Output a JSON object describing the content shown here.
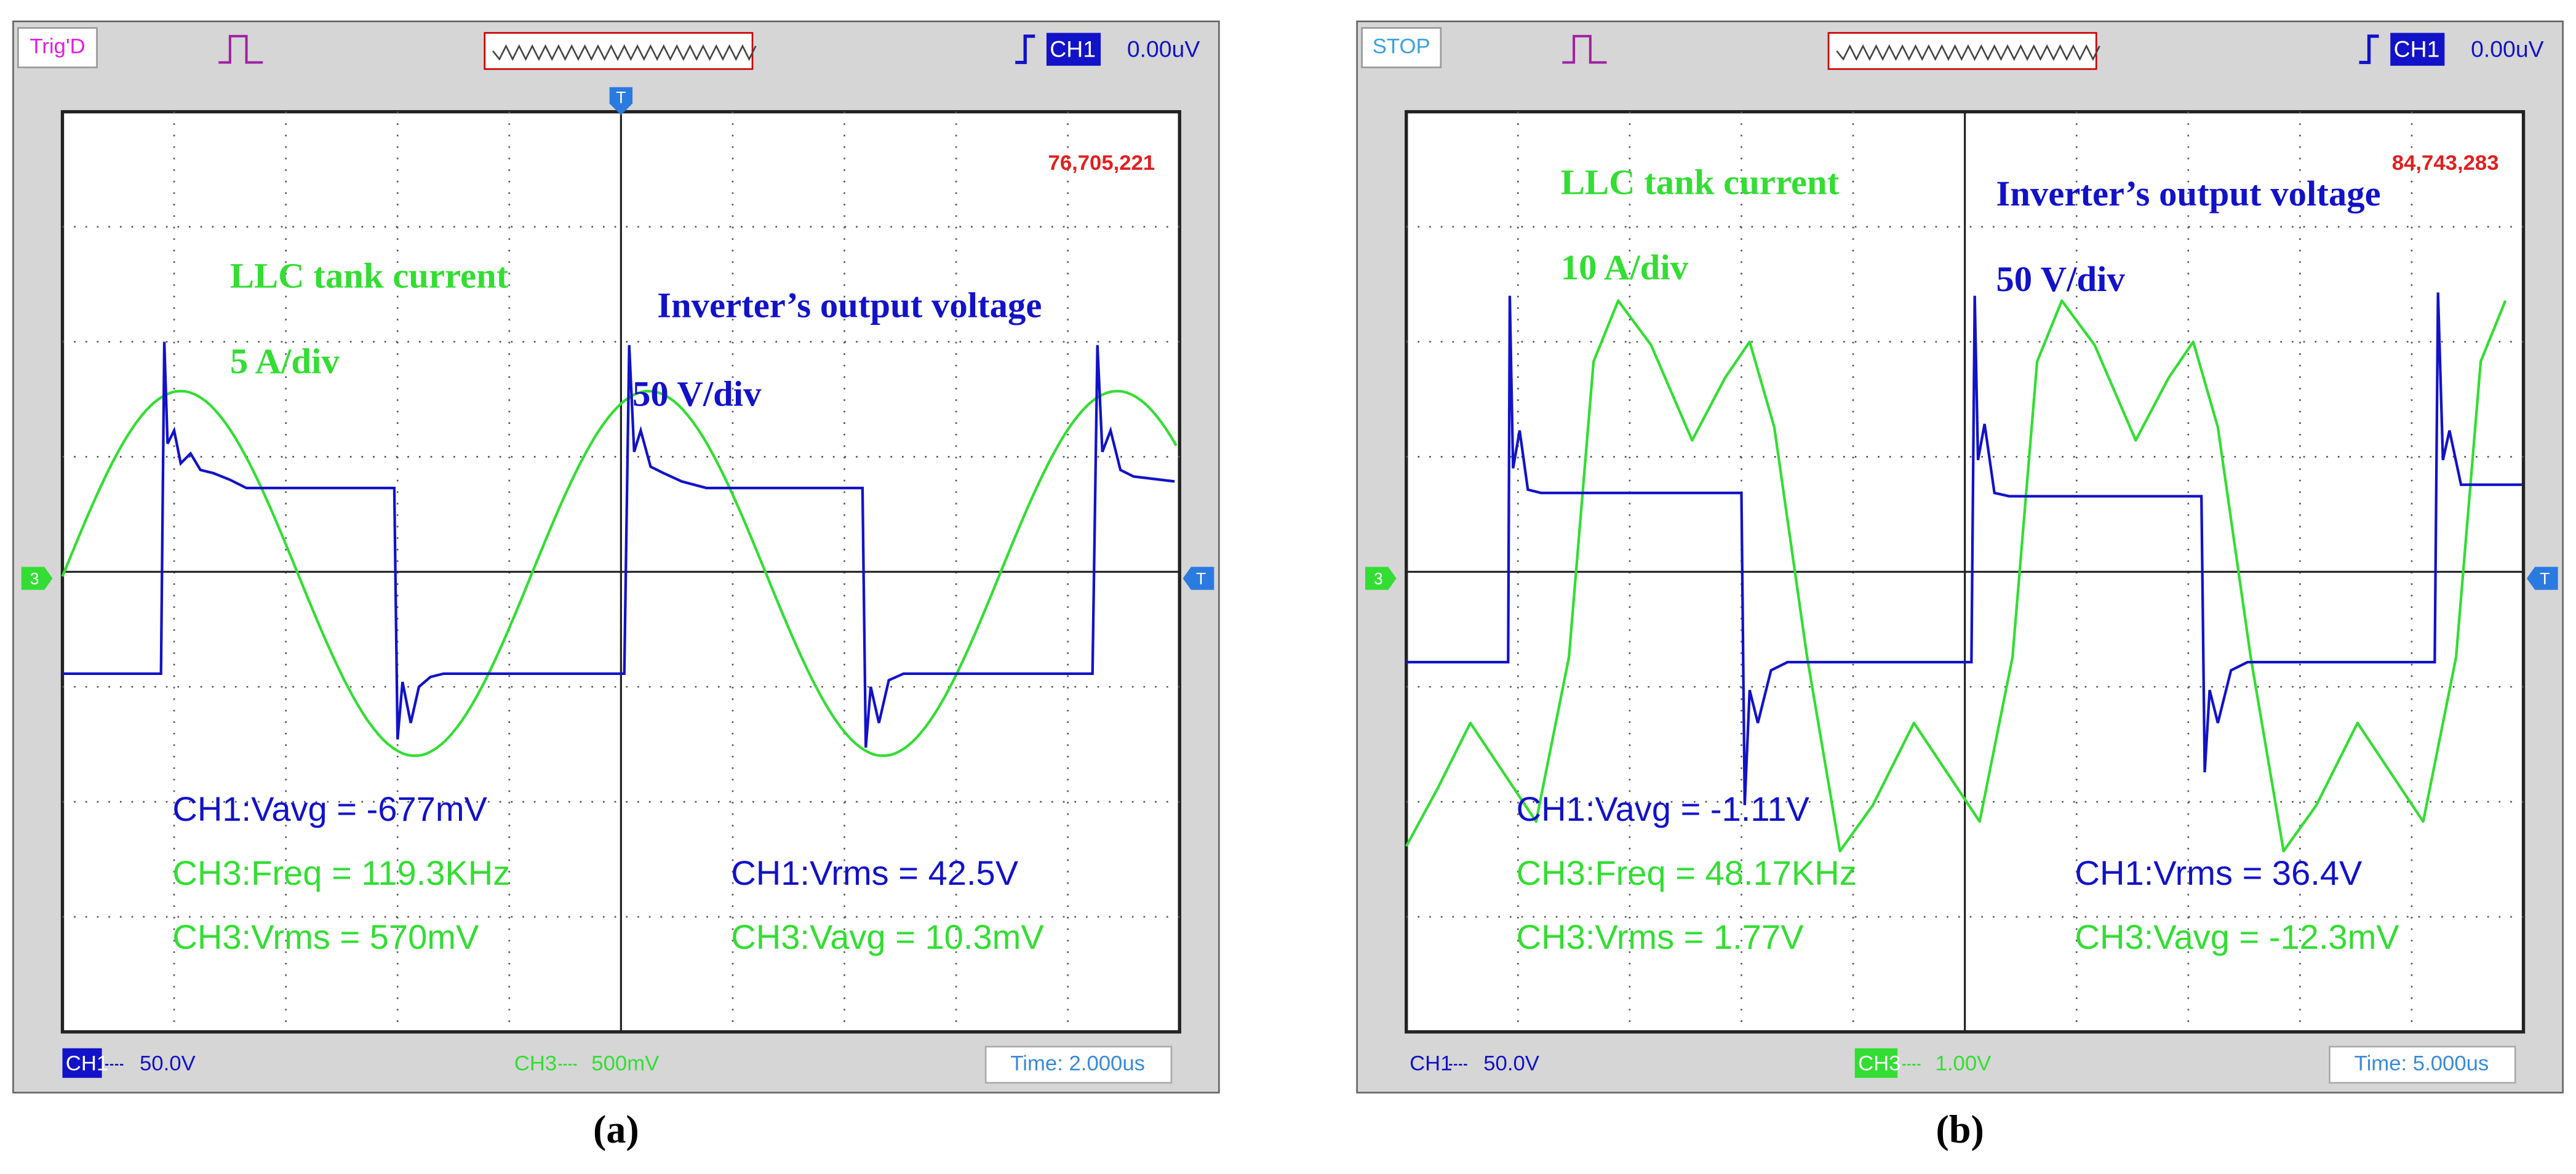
{
  "panels": [
    {
      "status": "Trig'D",
      "trigger_channel": "CH1",
      "trigger_level": "0.00uV",
      "top_marker": "T",
      "counter": "76,705,221",
      "current_label": "LLC tank current",
      "current_scale": "5 A/div",
      "voltage_label": "Inverter’s output voltage",
      "voltage_scale": "50 V/div",
      "measurements_left": [
        "CH1:Vavg = -677mV",
        "CH3:Freq = 119.3KHz",
        "CH3:Vrms = 570mV"
      ],
      "measurements_right": [
        "CH1:Vrms = 42.5V",
        "CH3:Vavg = 10.3mV"
      ],
      "ch3_marker": "3",
      "trigger_marker": "T",
      "ch1": "CH1",
      "ch1_scale": "50.0V",
      "ch3": "CH3",
      "ch3_scale": "500mV",
      "time": "Time: 2.000us",
      "caption": "(a)"
    },
    {
      "status": "STOP",
      "trigger_channel": "CH1",
      "trigger_level": "0.00uV",
      "counter": "84,743,283",
      "current_label": "LLC tank current",
      "current_scale": "10 A/div",
      "voltage_label": "Inverter’s output voltage",
      "voltage_scale": "50 V/div",
      "measurements_left": [
        "CH1:Vavg = -1.11V",
        "CH3:Freq = 48.17KHz",
        "CH3:Vrms = 1.77V"
      ],
      "measurements_right": [
        "CH1:Vrms = 36.4V",
        "CH3:Vavg = -12.3mV"
      ],
      "ch3_marker": "3",
      "trigger_marker": "T",
      "ch1": "CH1",
      "ch1_scale": "50.0V",
      "ch3": "CH3",
      "ch3_scale": "1.00V",
      "time": "Time: 5.000us",
      "caption": "(b)"
    }
  ]
}
